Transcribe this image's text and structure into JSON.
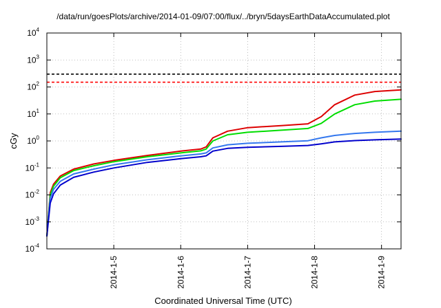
{
  "chart_data": {
    "type": "line",
    "title": "/data/run/goesPlots/archive/2014-01-09/07:00/flux/../bryn/5daysEarthDataAccumulated.plot",
    "xlabel": "Coordinated Universal Time (UTC)",
    "ylabel": "cGy",
    "y_scale": "log",
    "ylim": [
      0.0001,
      10000
    ],
    "xlim": [
      "2014-01-04 00:00",
      "2014-01-09 07:00"
    ],
    "grid": true,
    "legend": "none",
    "y_ticks": [
      {
        "value": 0.0001,
        "base": "10",
        "exp": "-4"
      },
      {
        "value": 0.001,
        "base": "10",
        "exp": "-3"
      },
      {
        "value": 0.01,
        "base": "10",
        "exp": "-2"
      },
      {
        "value": 0.1,
        "base": "10",
        "exp": "-1"
      },
      {
        "value": 1,
        "base": "10",
        "exp": "0"
      },
      {
        "value": 10,
        "base": "10",
        "exp": "1"
      },
      {
        "value": 100,
        "base": "10",
        "exp": "2"
      },
      {
        "value": 1000,
        "base": "10",
        "exp": "3"
      },
      {
        "value": 10000,
        "base": "10",
        "exp": "4"
      }
    ],
    "x_ticks": [
      {
        "value": "2014-01-05 00:00",
        "label": "2014-1-5"
      },
      {
        "value": "2014-01-06 00:00",
        "label": "2014-1-6"
      },
      {
        "value": "2014-01-07 00:00",
        "label": "2014-1-7"
      },
      {
        "value": "2014-01-08 00:00",
        "label": "2014-1-8"
      },
      {
        "value": "2014-01-09 00:00",
        "label": "2014-1-9"
      }
    ],
    "hlines": [
      {
        "y": 300,
        "color": "#000000",
        "style": "dashed"
      },
      {
        "y": 150,
        "color": "#ff0000",
        "style": "dashed"
      }
    ],
    "series": [
      {
        "color": "#dd0000",
        "points": [
          [
            "2014-01-04 00:00",
            0.0003
          ],
          [
            "2014-01-04 01:12",
            0.012
          ],
          [
            "2014-01-04 02:24",
            0.025
          ],
          [
            "2014-01-04 04:48",
            0.05
          ],
          [
            "2014-01-04 09:36",
            0.09
          ],
          [
            "2014-01-04 16:48",
            0.14
          ],
          [
            "2014-01-05 00:00",
            0.19
          ],
          [
            "2014-01-05 12:00",
            0.29
          ],
          [
            "2014-01-06 00:00",
            0.42
          ],
          [
            "2014-01-06 07:12",
            0.5
          ],
          [
            "2014-01-06 09:07",
            0.6
          ],
          [
            "2014-01-06 11:31",
            1.3
          ],
          [
            "2014-01-06 16:48",
            2.3
          ],
          [
            "2014-01-07 00:00",
            3.1
          ],
          [
            "2014-01-07 12:00",
            3.7
          ],
          [
            "2014-01-07 21:36",
            4.3
          ],
          [
            "2014-01-08 02:24",
            8
          ],
          [
            "2014-01-08 07:12",
            22
          ],
          [
            "2014-01-08 14:24",
            50
          ],
          [
            "2014-01-08 21:36",
            68
          ],
          [
            "2014-01-09 07:00",
            78
          ]
        ]
      },
      {
        "color": "#00dd00",
        "points": [
          [
            "2014-01-04 00:00",
            0.0003
          ],
          [
            "2014-01-04 01:12",
            0.01
          ],
          [
            "2014-01-04 02:24",
            0.021
          ],
          [
            "2014-01-04 04:48",
            0.043
          ],
          [
            "2014-01-04 09:36",
            0.08
          ],
          [
            "2014-01-04 16:48",
            0.12
          ],
          [
            "2014-01-05 00:00",
            0.17
          ],
          [
            "2014-01-05 12:00",
            0.26
          ],
          [
            "2014-01-06 00:00",
            0.36
          ],
          [
            "2014-01-06 07:12",
            0.43
          ],
          [
            "2014-01-06 09:07",
            0.5
          ],
          [
            "2014-01-06 11:31",
            1.0
          ],
          [
            "2014-01-06 16:48",
            1.7
          ],
          [
            "2014-01-07 00:00",
            2.1
          ],
          [
            "2014-01-07 12:00",
            2.5
          ],
          [
            "2014-01-07 21:36",
            2.9
          ],
          [
            "2014-01-08 02:24",
            4.5
          ],
          [
            "2014-01-08 07:12",
            10
          ],
          [
            "2014-01-08 14:24",
            22
          ],
          [
            "2014-01-08 21:36",
            30
          ],
          [
            "2014-01-09 07:00",
            35
          ]
        ]
      },
      {
        "color": "#3377ee",
        "points": [
          [
            "2014-01-04 00:00",
            0.0003
          ],
          [
            "2014-01-04 01:12",
            0.0075
          ],
          [
            "2014-01-04 02:24",
            0.016
          ],
          [
            "2014-01-04 04:48",
            0.032
          ],
          [
            "2014-01-04 09:36",
            0.06
          ],
          [
            "2014-01-04 16:48",
            0.09
          ],
          [
            "2014-01-05 00:00",
            0.13
          ],
          [
            "2014-01-05 12:00",
            0.2
          ],
          [
            "2014-01-06 00:00",
            0.28
          ],
          [
            "2014-01-06 07:12",
            0.33
          ],
          [
            "2014-01-06 09:07",
            0.36
          ],
          [
            "2014-01-06 11:31",
            0.55
          ],
          [
            "2014-01-06 16:48",
            0.72
          ],
          [
            "2014-01-07 00:00",
            0.82
          ],
          [
            "2014-01-07 12:00",
            0.92
          ],
          [
            "2014-01-07 21:36",
            1.02
          ],
          [
            "2014-01-08 02:24",
            1.3
          ],
          [
            "2014-01-08 07:12",
            1.6
          ],
          [
            "2014-01-08 14:24",
            1.9
          ],
          [
            "2014-01-08 21:36",
            2.1
          ],
          [
            "2014-01-09 07:00",
            2.3
          ]
        ]
      },
      {
        "color": "#0000cc",
        "points": [
          [
            "2014-01-04 00:00",
            0.0003
          ],
          [
            "2014-01-04 01:12",
            0.005
          ],
          [
            "2014-01-04 02:24",
            0.011
          ],
          [
            "2014-01-04 04:48",
            0.023
          ],
          [
            "2014-01-04 09:36",
            0.045
          ],
          [
            "2014-01-04 16:48",
            0.07
          ],
          [
            "2014-01-05 00:00",
            0.1
          ],
          [
            "2014-01-05 12:00",
            0.16
          ],
          [
            "2014-01-06 00:00",
            0.22
          ],
          [
            "2014-01-06 07:12",
            0.26
          ],
          [
            "2014-01-06 09:07",
            0.28
          ],
          [
            "2014-01-06 11:31",
            0.42
          ],
          [
            "2014-01-06 16:48",
            0.53
          ],
          [
            "2014-01-07 00:00",
            0.58
          ],
          [
            "2014-01-07 12:00",
            0.63
          ],
          [
            "2014-01-07 21:36",
            0.68
          ],
          [
            "2014-01-08 02:24",
            0.78
          ],
          [
            "2014-01-08 07:12",
            0.92
          ],
          [
            "2014-01-08 14:24",
            1.03
          ],
          [
            "2014-01-08 21:36",
            1.1
          ],
          [
            "2014-01-09 07:00",
            1.18
          ]
        ]
      }
    ]
  }
}
